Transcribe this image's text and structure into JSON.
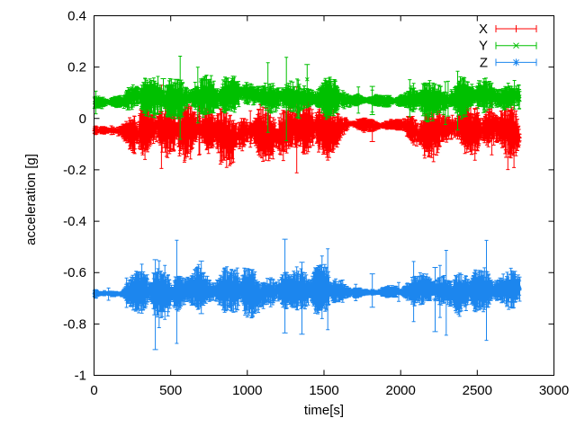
{
  "figure": {
    "background": "#ffffff",
    "border_color": "#000000",
    "text_color": "#000000"
  },
  "chart_data": {
    "type": "line",
    "subtype": "errorbars",
    "title": "",
    "xlabel": "time[s]",
    "ylabel": "acceleration [g]",
    "xlim": [
      0,
      3000
    ],
    "ylim": [
      -1,
      0.4
    ],
    "xticks": [
      0,
      500,
      1000,
      1500,
      2000,
      2500,
      3000
    ],
    "xtick_labels": [
      "0",
      "500",
      "1000",
      "1500",
      "2000",
      "2500",
      "3000"
    ],
    "yticks": [
      -1,
      -0.8,
      -0.6,
      -0.4,
      -0.2,
      0,
      0.2,
      0.4
    ],
    "ytick_labels": [
      "-1",
      "-0.8",
      "-0.6",
      "-0.4",
      "-0.2",
      "0",
      "0.2",
      "0.4"
    ],
    "grid": false,
    "legend_position": "top-right-inside",
    "dt": 2.5,
    "t_end": 2778,
    "series": [
      {
        "name": "X",
        "color": "#ff0000",
        "marker": "plus",
        "segments": [
          {
            "t0": 0,
            "t1": 235,
            "center": -0.046,
            "wander": 0.006,
            "bar": 0.011
          },
          {
            "t0": 235,
            "t1": 1620,
            "center": -0.052,
            "wander": 0.03,
            "bar": 0.048
          },
          {
            "t0": 1620,
            "t1": 2070,
            "center": -0.024,
            "wander": 0.005,
            "bar": 0.011
          },
          {
            "t0": 2070,
            "t1": 2780,
            "center": -0.05,
            "wander": 0.028,
            "bar": 0.045
          }
        ],
        "events": [
          {
            "t": 1268,
            "lo": -0.03,
            "hi": 0.115
          },
          {
            "t": 1815,
            "lo": -0.09,
            "hi": -0.01
          }
        ]
      },
      {
        "name": "Y",
        "color": "#00c000",
        "marker": "cross",
        "segments": [
          {
            "t0": 0,
            "t1": 235,
            "center": 0.062,
            "wander": 0.006,
            "bar": 0.01
          },
          {
            "t0": 235,
            "t1": 1620,
            "center": 0.085,
            "wander": 0.02,
            "bar": 0.034
          },
          {
            "t0": 1620,
            "t1": 2070,
            "center": 0.068,
            "wander": 0.005,
            "bar": 0.01
          },
          {
            "t0": 2070,
            "t1": 2780,
            "center": 0.08,
            "wander": 0.022,
            "bar": 0.034
          }
        ],
        "events": [
          {
            "t": 452,
            "lo": 0.05,
            "hi": 0.155
          },
          {
            "t": 1390,
            "lo": 0.095,
            "hi": 0.21
          },
          {
            "t": 1815,
            "lo": 0.015,
            "hi": 0.125
          }
        ]
      },
      {
        "name": "Z",
        "color": "#1c86ee",
        "marker": "star",
        "segments": [
          {
            "t0": 0,
            "t1": 235,
            "center": -0.684,
            "wander": 0.004,
            "bar": 0.008
          },
          {
            "t0": 235,
            "t1": 1620,
            "center": -0.672,
            "wander": 0.018,
            "bar": 0.042
          },
          {
            "t0": 1620,
            "t1": 2070,
            "center": -0.676,
            "wander": 0.004,
            "bar": 0.01
          },
          {
            "t0": 2070,
            "t1": 2780,
            "center": -0.67,
            "wander": 0.016,
            "bar": 0.038
          }
        ],
        "events": [
          {
            "t": 400,
            "lo": -0.9,
            "hi": -0.55
          },
          {
            "t": 700,
            "lo": -0.76,
            "hi": -0.555
          },
          {
            "t": 1245,
            "lo": -0.835,
            "hi": -0.47
          },
          {
            "t": 1356,
            "lo": -0.84,
            "hi": -0.56
          },
          {
            "t": 1815,
            "lo": -0.735,
            "hi": -0.605
          },
          {
            "t": 2225,
            "lo": -0.83,
            "hi": -0.58
          }
        ]
      }
    ]
  }
}
